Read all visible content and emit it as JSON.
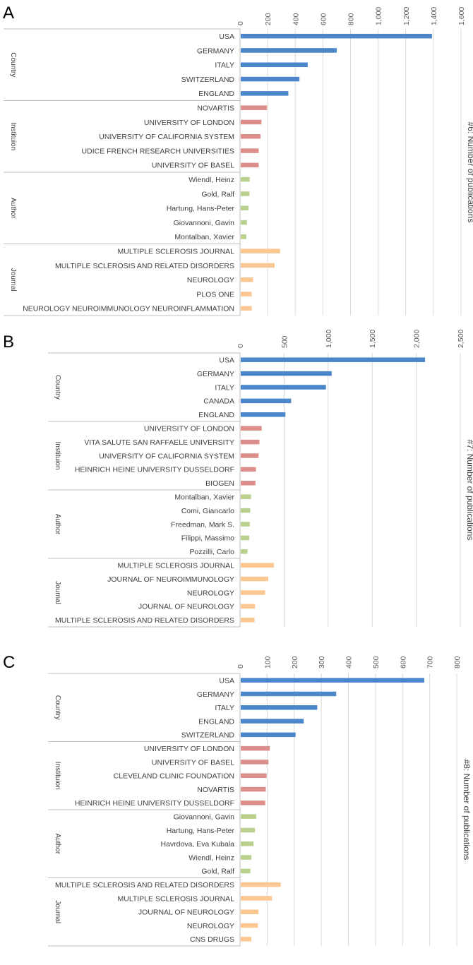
{
  "figure": {
    "colors": {
      "Country": "#4a86c8",
      "Institution": "#dc8e8a",
      "Author": "#b9d08e",
      "Journal": "#fbc792",
      "grid": "#d9d9d9",
      "divider": "#bfbfbf"
    }
  },
  "chart_data": [
    {
      "type": "bar",
      "orientation": "horizontal",
      "panel_label": "A",
      "xlabel": "#6: Number of publications",
      "xlim": [
        0,
        1600
      ],
      "ticks": [
        0,
        200,
        400,
        600,
        800,
        1000,
        1200,
        1400,
        1600
      ],
      "tick_labels": [
        "0",
        "200",
        "400",
        "600",
        "800",
        "1,000",
        "1,200",
        "1,400",
        "1,600"
      ],
      "grid": true,
      "groups": [
        {
          "label": "Country",
          "key": "Country",
          "categories": [
            "USA",
            "GERMANY",
            "ITALY",
            "SWITZERLAND",
            "ENGLAND"
          ],
          "values": [
            1390,
            700,
            490,
            430,
            350
          ]
        },
        {
          "label": "Instituion",
          "key": "Institution",
          "categories": [
            "NOVARTIS",
            "UNIVERSITY OF LONDON",
            "UNIVERSITY OF CALIFORNIA SYSTEM",
            "UDICE FRENCH RESEARCH UNIVERSITIES",
            "UNIVERSITY OF BASEL"
          ],
          "values": [
            195,
            155,
            148,
            135,
            135
          ]
        },
        {
          "label": "Author",
          "key": "Author",
          "categories": [
            "Wiendl, Heinz",
            "Gold, Ralf",
            "Hartung, Hans-Peter",
            "Giovannoni, Gavin",
            "Montalban, Xavier"
          ],
          "values": [
            70,
            68,
            62,
            50,
            45
          ]
        },
        {
          "label": "Journal",
          "key": "Journal",
          "categories": [
            "MULTIPLE SCLEROSIS JOURNAL",
            "MULTIPLE SCLEROSIS AND RELATED DISORDERS",
            "NEUROLOGY",
            "PLOS ONE",
            "NEUROLOGY NEUROIMMUNOLOGY NEUROINFLAMMATION"
          ],
          "values": [
            290,
            250,
            95,
            85,
            85
          ]
        }
      ]
    },
    {
      "type": "bar",
      "orientation": "horizontal",
      "panel_label": "B",
      "xlabel": "#7: Number of publications",
      "xlim": [
        0,
        2500
      ],
      "ticks": [
        0,
        500,
        1000,
        1500,
        2000,
        2500
      ],
      "tick_labels": [
        "0",
        "500",
        "1,000",
        "1,500",
        "2,000",
        "2,500"
      ],
      "grid": true,
      "groups": [
        {
          "label": "Country",
          "key": "Country",
          "categories": [
            "USA",
            "GERMANY",
            "ITALY",
            "CANADA",
            "ENGLAND"
          ],
          "values": [
            2100,
            1040,
            975,
            580,
            515
          ]
        },
        {
          "label": "Instituion",
          "key": "Institution",
          "categories": [
            "UNIVERSITY OF LONDON",
            "VITA SALUTE SAN RAFFAELE UNIVERSITY",
            "UNIVERSITY OF CALIFORNIA SYSTEM",
            "HEINRICH HEINE UNIVERSITY DUSSELDORF",
            "BIOGEN"
          ],
          "values": [
            245,
            220,
            210,
            180,
            175
          ]
        },
        {
          "label": "Author",
          "key": "Author",
          "categories": [
            "Montalban, Xavier",
            "Comi, Giancarlo",
            "Freedman, Mark S.",
            "Filippi, Massimo",
            "Pozzilli, Carlo"
          ],
          "values": [
            125,
            115,
            110,
            105,
            85
          ]
        },
        {
          "label": "Journal",
          "key": "Journal",
          "categories": [
            "MULTIPLE SCLEROSIS JOURNAL",
            "JOURNAL OF NEUROIMMUNOLOGY",
            "NEUROLOGY",
            "JOURNAL OF NEUROLOGY",
            "MULTIPLE SCLEROSIS AND RELATED DISORDERS"
          ],
          "values": [
            385,
            320,
            285,
            170,
            165
          ]
        }
      ]
    },
    {
      "type": "bar",
      "orientation": "horizontal",
      "panel_label": "C",
      "xlabel": "#8: Number of publications",
      "xlim": [
        0,
        800
      ],
      "ticks": [
        0,
        100,
        200,
        300,
        400,
        500,
        600,
        700,
        800
      ],
      "tick_labels": [
        "0",
        "100",
        "200",
        "300",
        "400",
        "500",
        "600",
        "700",
        "800"
      ],
      "grid": true,
      "groups": [
        {
          "label": "Country",
          "key": "Country",
          "categories": [
            "USA",
            "GERMANY",
            "ITALY",
            "ENGLAND",
            "SWITZERLAND"
          ],
          "values": [
            680,
            355,
            285,
            235,
            205
          ]
        },
        {
          "label": "Instituion",
          "key": "Institution",
          "categories": [
            "UNIVERSITY OF LONDON",
            "UNIVERSITY OF BASEL",
            "CLEVELAND CLINIC FOUNDATION",
            "NOVARTIS",
            "HEINRICH HEINE UNIVERSITY DUSSELDORF"
          ],
          "values": [
            110,
            105,
            98,
            95,
            93
          ]
        },
        {
          "label": "Author",
          "key": "Author",
          "categories": [
            "Giovannoni, Gavin",
            "Hartung, Hans-Peter",
            "Havrdova, Eva Kubala",
            "Wiendl, Heinz",
            "Gold, Ralf"
          ],
          "values": [
            60,
            55,
            50,
            42,
            38
          ]
        },
        {
          "label": "Journal",
          "key": "Journal",
          "categories": [
            "MULTIPLE SCLEROSIS AND RELATED DISORDERS",
            "MULTIPLE SCLEROSIS JOURNAL",
            "JOURNAL OF NEUROLOGY",
            "NEUROLOGY",
            "CNS DRUGS"
          ],
          "values": [
            150,
            118,
            68,
            66,
            42
          ]
        }
      ]
    }
  ]
}
